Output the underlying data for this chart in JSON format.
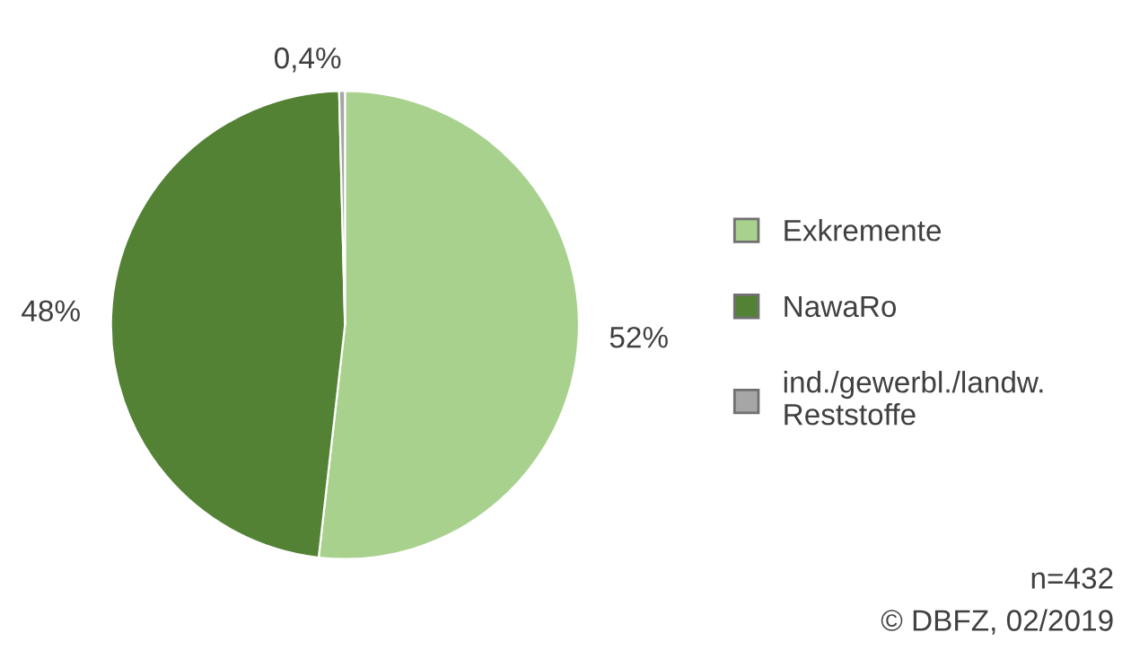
{
  "chart_data": {
    "type": "pie",
    "categories": [
      "Exkremente",
      "NawaRo",
      "ind./gewerbl./landw.\nReststoffe"
    ],
    "values": [
      52,
      48,
      0.4
    ],
    "value_labels": [
      "52%",
      "48%",
      "0,4%"
    ],
    "colors": [
      "#a9d18e",
      "#548235",
      "#a6a6a6"
    ],
    "legend": "right",
    "annotations": [
      "n=432",
      "© DBFZ, 02/2019"
    ]
  }
}
